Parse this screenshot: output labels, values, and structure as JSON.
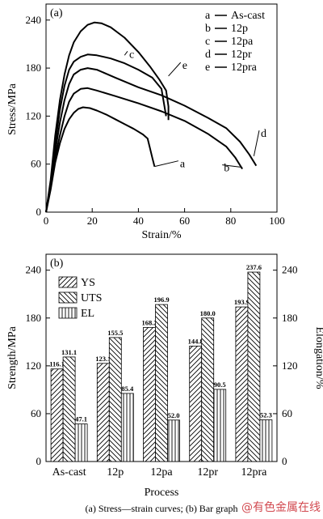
{
  "chart_data": [
    {
      "type": "line",
      "panel_label": "(a)",
      "xlabel": "Strain/%",
      "ylabel": "Stress/MPa",
      "xlim": [
        0,
        100
      ],
      "ylim": [
        0,
        260
      ],
      "xticks": [
        0,
        20,
        40,
        60,
        80,
        100
      ],
      "yticks": [
        0,
        60,
        120,
        180,
        240
      ],
      "legend_position": "top-right",
      "series": [
        {
          "name": "As-cast",
          "letter": "a",
          "points": [
            [
              0,
              0
            ],
            [
              2,
              28
            ],
            [
              4,
              62
            ],
            [
              6,
              86
            ],
            [
              8,
              104
            ],
            [
              10,
              116
            ],
            [
              12,
              124
            ],
            [
              14,
              129
            ],
            [
              16,
              131
            ],
            [
              19,
              130
            ],
            [
              22,
              127
            ],
            [
              26,
              122
            ],
            [
              30,
              116
            ],
            [
              34,
              110
            ],
            [
              38,
              104
            ],
            [
              42,
              97
            ],
            [
              44,
              92
            ],
            [
              45,
              80
            ],
            [
              46,
              68
            ],
            [
              47,
              57
            ]
          ]
        },
        {
          "name": "12p",
          "letter": "b",
          "points": [
            [
              0,
              0
            ],
            [
              2,
              30
            ],
            [
              4,
              68
            ],
            [
              6,
              96
            ],
            [
              8,
              120
            ],
            [
              10,
              138
            ],
            [
              12,
              148
            ],
            [
              15,
              154
            ],
            [
              18,
              155
            ],
            [
              22,
              152
            ],
            [
              30,
              145
            ],
            [
              40,
              136
            ],
            [
              50,
              126
            ],
            [
              60,
              114
            ],
            [
              70,
              98
            ],
            [
              78,
              82
            ],
            [
              82,
              68
            ],
            [
              85,
              54
            ]
          ]
        },
        {
          "name": "12pa",
          "letter": "c",
          "points": [
            [
              0,
              0
            ],
            [
              2,
              36
            ],
            [
              4,
              86
            ],
            [
              6,
              128
            ],
            [
              8,
              158
            ],
            [
              10,
              178
            ],
            [
              12,
              188
            ],
            [
              15,
              194
            ],
            [
              18,
              197
            ],
            [
              22,
              196
            ],
            [
              28,
              192
            ],
            [
              34,
              186
            ],
            [
              40,
              178
            ],
            [
              46,
              168
            ],
            [
              50,
              154
            ],
            [
              52,
              120
            ]
          ]
        },
        {
          "name": "12pr",
          "letter": "d",
          "points": [
            [
              0,
              0
            ],
            [
              2,
              32
            ],
            [
              4,
              76
            ],
            [
              6,
              112
            ],
            [
              8,
              140
            ],
            [
              10,
              160
            ],
            [
              12,
              172
            ],
            [
              15,
              178
            ],
            [
              18,
              180
            ],
            [
              22,
              178
            ],
            [
              30,
              168
            ],
            [
              40,
              156
            ],
            [
              50,
              146
            ],
            [
              60,
              133
            ],
            [
              70,
              118
            ],
            [
              78,
              105
            ],
            [
              84,
              88
            ],
            [
              88,
              72
            ],
            [
              91,
              58
            ]
          ]
        },
        {
          "name": "12pra",
          "letter": "e",
          "points": [
            [
              0,
              0
            ],
            [
              2,
              40
            ],
            [
              4,
              96
            ],
            [
              6,
              140
            ],
            [
              8,
              172
            ],
            [
              10,
              196
            ],
            [
              12,
              212
            ],
            [
              15,
              226
            ],
            [
              18,
              234
            ],
            [
              21,
              237
            ],
            [
              24,
              236
            ],
            [
              28,
              231
            ],
            [
              34,
              218
            ],
            [
              40,
              200
            ],
            [
              45,
              182
            ],
            [
              49,
              166
            ],
            [
              52,
              152
            ],
            [
              53,
              132
            ],
            [
              53,
              115
            ]
          ]
        }
      ],
      "annotations": [
        {
          "text": "a",
          "x": 58,
          "y": 60
        },
        {
          "text": "b",
          "x": 77,
          "y": 55
        },
        {
          "text": "c",
          "x": 36,
          "y": 197
        },
        {
          "text": "d",
          "x": 93,
          "y": 98
        },
        {
          "text": "e",
          "x": 59,
          "y": 183
        }
      ]
    },
    {
      "type": "bar",
      "panel_label": "(b)",
      "xlabel": "Process",
      "ylabel": "Strength/MPa",
      "ylabel_right": "Elongation/%",
      "categories": [
        "As-cast",
        "12p",
        "12pa",
        "12pr",
        "12pra"
      ],
      "ylim": [
        0,
        260
      ],
      "yticks": [
        0,
        60,
        120,
        180,
        240
      ],
      "legend_position": "top-left",
      "series": [
        {
          "name": "YS",
          "values": [
            116.1,
            123.1,
            168.2,
            144.8,
            193.9
          ],
          "labels": [
            "116.1",
            "123.1",
            "168.2",
            "144.8",
            "193.9"
          ]
        },
        {
          "name": "UTS",
          "values": [
            131.1,
            155.5,
            196.9,
            180.0,
            237.6
          ],
          "labels": [
            "131.1",
            "155.5",
            "196.9",
            "180.0",
            "237.6"
          ]
        },
        {
          "name": "EL",
          "values": [
            47.1,
            85.4,
            52.0,
            90.5,
            52.3
          ],
          "labels": [
            "47.1",
            "85.4",
            "52.0",
            "90.5",
            "52.3"
          ]
        }
      ]
    }
  ],
  "caption": "(a) Stress—strain curves; (b) Bar graph",
  "watermark": "@有色金属在线"
}
